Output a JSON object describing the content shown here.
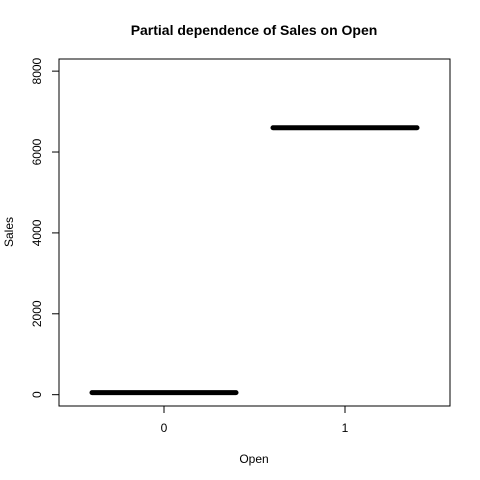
{
  "chart_data": {
    "type": "bar",
    "title": "Partial dependence of Sales on Open",
    "xlabel": "Open",
    "ylabel": "Sales",
    "categories": [
      "0",
      "1"
    ],
    "values": [
      50,
      6600
    ],
    "ylim": [
      -280,
      8300
    ],
    "y_ticks": [
      "0",
      "2000",
      "4000",
      "6000",
      "8000"
    ],
    "y_tick_values": [
      0,
      2000,
      4000,
      6000,
      8000
    ],
    "grid": false,
    "legend": "none",
    "colors": {
      "line": "#000000",
      "background": "#ffffff"
    }
  }
}
